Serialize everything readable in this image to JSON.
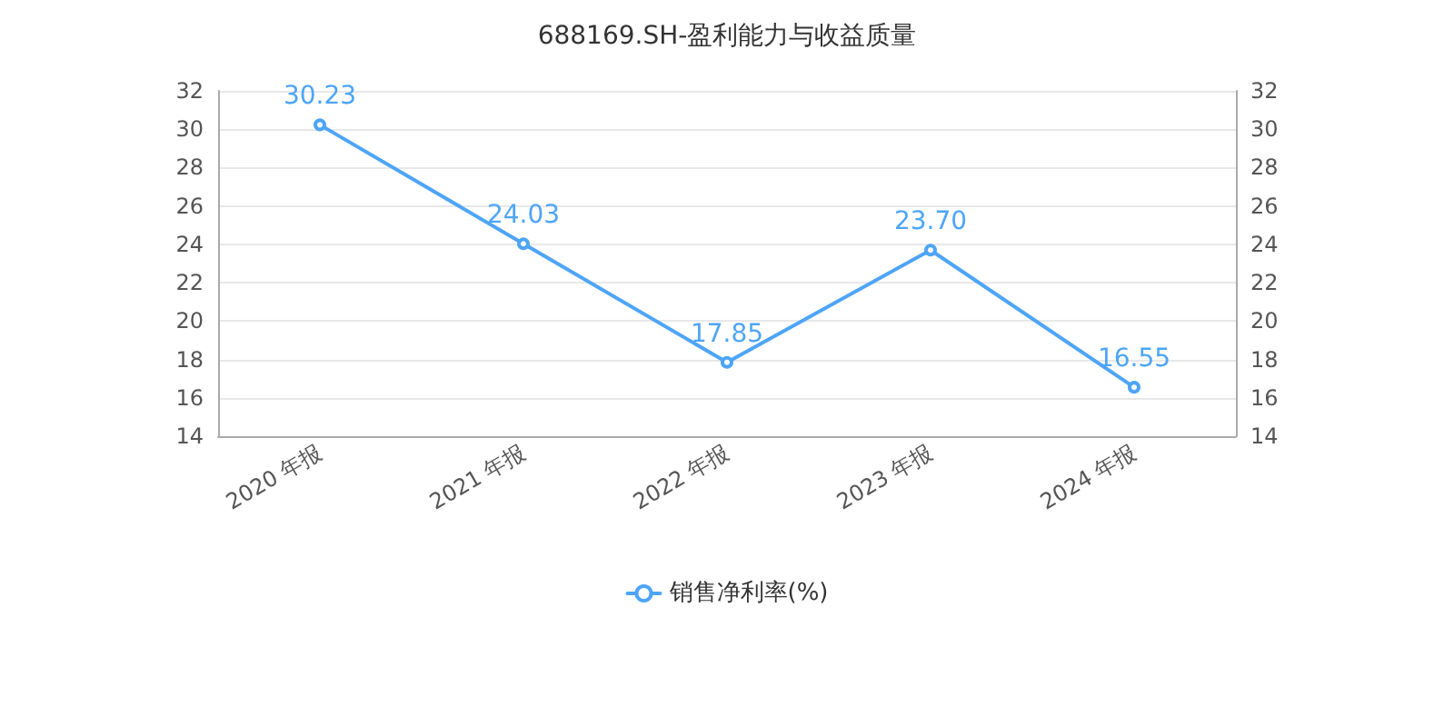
{
  "chart_data": {
    "type": "line",
    "title": "688169.SH-盈利能力与收益质量",
    "categories": [
      "2020 年报",
      "2021 年报",
      "2022 年报",
      "2023 年报",
      "2024 年报"
    ],
    "series": [
      {
        "name": "销售净利率(%)",
        "color": "#4ea5f7",
        "values": [
          30.23,
          24.03,
          17.85,
          23.7,
          16.55
        ],
        "value_labels": [
          "30.23",
          "24.03",
          "17.85",
          "23.70",
          "16.55"
        ]
      }
    ],
    "ylim": [
      14,
      32
    ],
    "yticks": [
      14,
      16,
      18,
      20,
      22,
      24,
      26,
      28,
      30,
      32
    ],
    "y2lim": [
      14,
      32
    ],
    "y2ticks": [
      14,
      16,
      18,
      20,
      22,
      24,
      26,
      28,
      30,
      32
    ],
    "grid": "y",
    "legend": "bottom",
    "marker": "circle",
    "line_style": "solid"
  }
}
